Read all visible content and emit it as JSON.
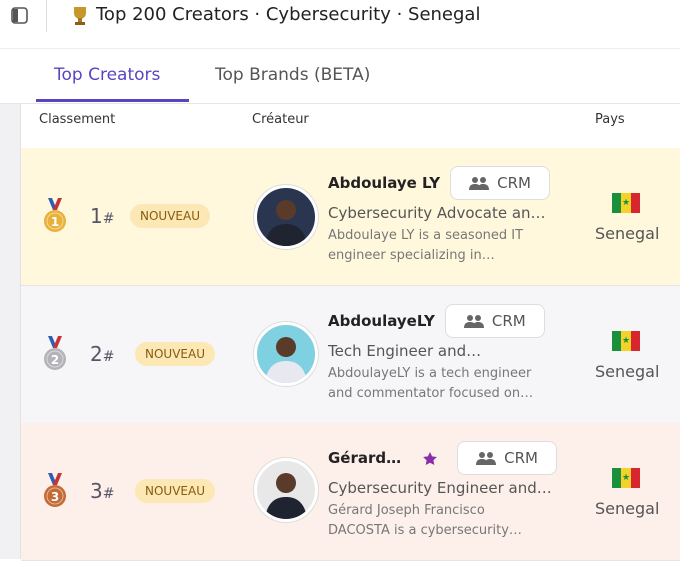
{
  "header": {
    "title": "Top 200 Creators · Cybersecurity · Senegal"
  },
  "tabs": [
    "Top Creators",
    "Top Brands (BETA)"
  ],
  "columns": [
    "Classement",
    "Créateur",
    "Pays"
  ],
  "rows": [
    {
      "rank": "1",
      "rank_suffix": "#",
      "badge": "NOUVEAU",
      "name": "Abdoulaye LY",
      "button": "CRM",
      "headline": "Cybersecurity Advocate an…",
      "description": "Abdoulaye LY is a seasoned IT engineer specializing in…",
      "country": "Senegal"
    },
    {
      "rank": "2",
      "rank_suffix": "#",
      "badge": "NOUVEAU",
      "name": "AbdoulayeLY",
      "button": "CRM",
      "headline": "Tech Engineer and…",
      "description": "AbdoulayeLY is a tech engineer and commentator focused on…",
      "country": "Senegal"
    },
    {
      "rank": "3",
      "rank_suffix": "#",
      "badge": "NOUVEAU",
      "name": "Gérard…",
      "button": "CRM",
      "headline": "Cybersecurity Engineer and…",
      "description": "Gérard Joseph Francisco DACOSTA is a cybersecurity…",
      "country": "Senegal"
    }
  ]
}
